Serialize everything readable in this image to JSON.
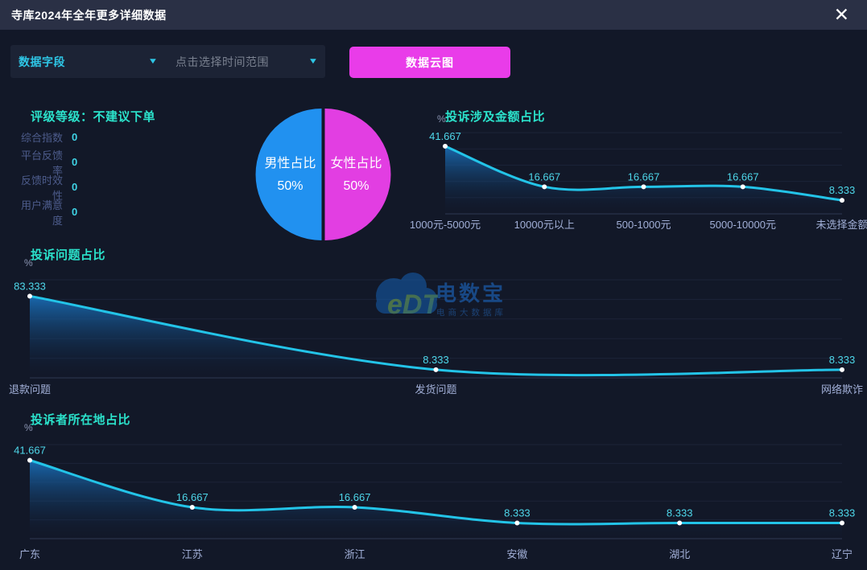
{
  "window": {
    "title": "寺库2024年全年更多详细数据"
  },
  "icons": {
    "close": "✕",
    "caret": "▼"
  },
  "toolbar": {
    "field_select": {
      "value": "数据字段"
    },
    "time_select": {
      "placeholder": "点击选择时间范围"
    },
    "cloud_button_label": "数据云图"
  },
  "rating": {
    "title": "评级等级：不建议下单",
    "metrics": [
      {
        "label": "综合指数",
        "value": "0"
      },
      {
        "label": "平台反馈率",
        "value": "0"
      },
      {
        "label": "反馈时效性",
        "value": "0"
      },
      {
        "label": "用户满意度",
        "value": "0"
      }
    ]
  },
  "watermark": {
    "logo_text": "eDT",
    "name": "电数宝",
    "subtitle": "电商大数据库"
  },
  "colors": {
    "line_cyan": "#23c4e8",
    "title_teal": "#2be2cb",
    "value_label_cyan": "#4ed7ea",
    "axis_label": "#a2b0d8",
    "pie_male_blue": "#2191f0",
    "pie_female_magenta": "#e23ee2",
    "button_magenta": "#e93ce9",
    "header_bg": "#2a3045",
    "page_bg": "#121828"
  },
  "chart_data": [
    {
      "id": "gender-pie",
      "type": "pie",
      "unit": "%",
      "slices": [
        {
          "label": "男性占比",
          "value": 50,
          "color": "#2191f0"
        },
        {
          "label": "女性占比",
          "value": 50,
          "color": "#e23ee2"
        }
      ],
      "legend_position": "inside"
    },
    {
      "id": "amount-line",
      "type": "line",
      "title": "投诉涉及金额占比",
      "ylabel": "%",
      "categories": [
        "1000元-5000元",
        "10000元以上",
        "500-1000元",
        "5000-10000元",
        "未选择金额"
      ],
      "values": [
        41.667,
        16.667,
        16.667,
        16.667,
        8.333
      ],
      "ylim": [
        0,
        50
      ],
      "grid_step": 10,
      "grid": true,
      "smooth": true
    },
    {
      "id": "issue-line",
      "type": "line",
      "title": "投诉问题占比",
      "ylabel": "%",
      "categories": [
        "退款问题",
        "发货问题",
        "网络欺诈"
      ],
      "values": [
        83.333,
        8.333,
        8.333
      ],
      "ylim": [
        0,
        100
      ],
      "grid_step": 20,
      "grid": true,
      "smooth": true
    },
    {
      "id": "region-line",
      "type": "line",
      "title": "投诉者所在地占比",
      "ylabel": "%",
      "categories": [
        "广东",
        "江苏",
        "浙江",
        "安徽",
        "湖北",
        "辽宁"
      ],
      "values": [
        41.667,
        16.667,
        16.667,
        8.333,
        8.333,
        8.333
      ],
      "ylim": [
        0,
        50
      ],
      "grid_step": 10,
      "grid": true,
      "smooth": true
    }
  ]
}
